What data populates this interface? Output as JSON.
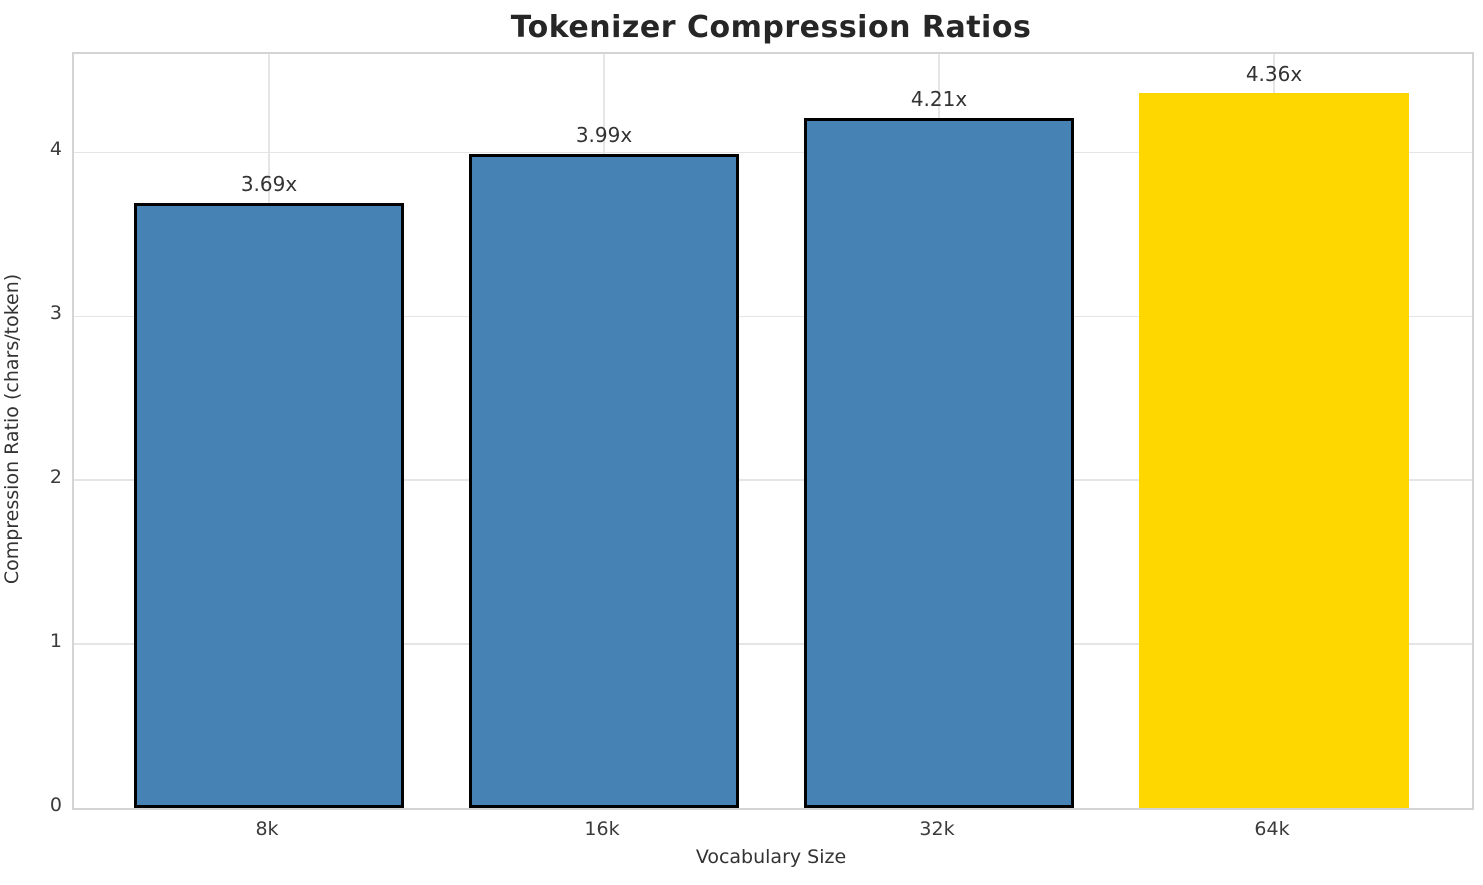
{
  "chart_data": {
    "type": "bar",
    "title": "Tokenizer Compression Ratios",
    "xlabel": "Vocabulary Size",
    "ylabel": "Compression Ratio (chars/token)",
    "categories": [
      "8k",
      "16k",
      "32k",
      "64k"
    ],
    "values": [
      3.69,
      3.99,
      4.21,
      4.36
    ],
    "bar_labels": [
      "3.69x",
      "3.99x",
      "4.21x",
      "4.36x"
    ],
    "bar_colors": [
      "#4682B4",
      "#4682B4",
      "#4682B4",
      "#FFD700"
    ],
    "bar_edge_colors": [
      "#000000",
      "#000000",
      "#000000",
      "none"
    ],
    "default_bar_color": "#4682B4",
    "highlight_bar_color": "#FFD700",
    "yticks": [
      0,
      1,
      2,
      3,
      4
    ],
    "ylim": [
      0,
      4.6
    ],
    "grid": true,
    "grid_color": "#e5e5e5",
    "spine_color": "#d4d4d4",
    "legend_position": "none"
  }
}
